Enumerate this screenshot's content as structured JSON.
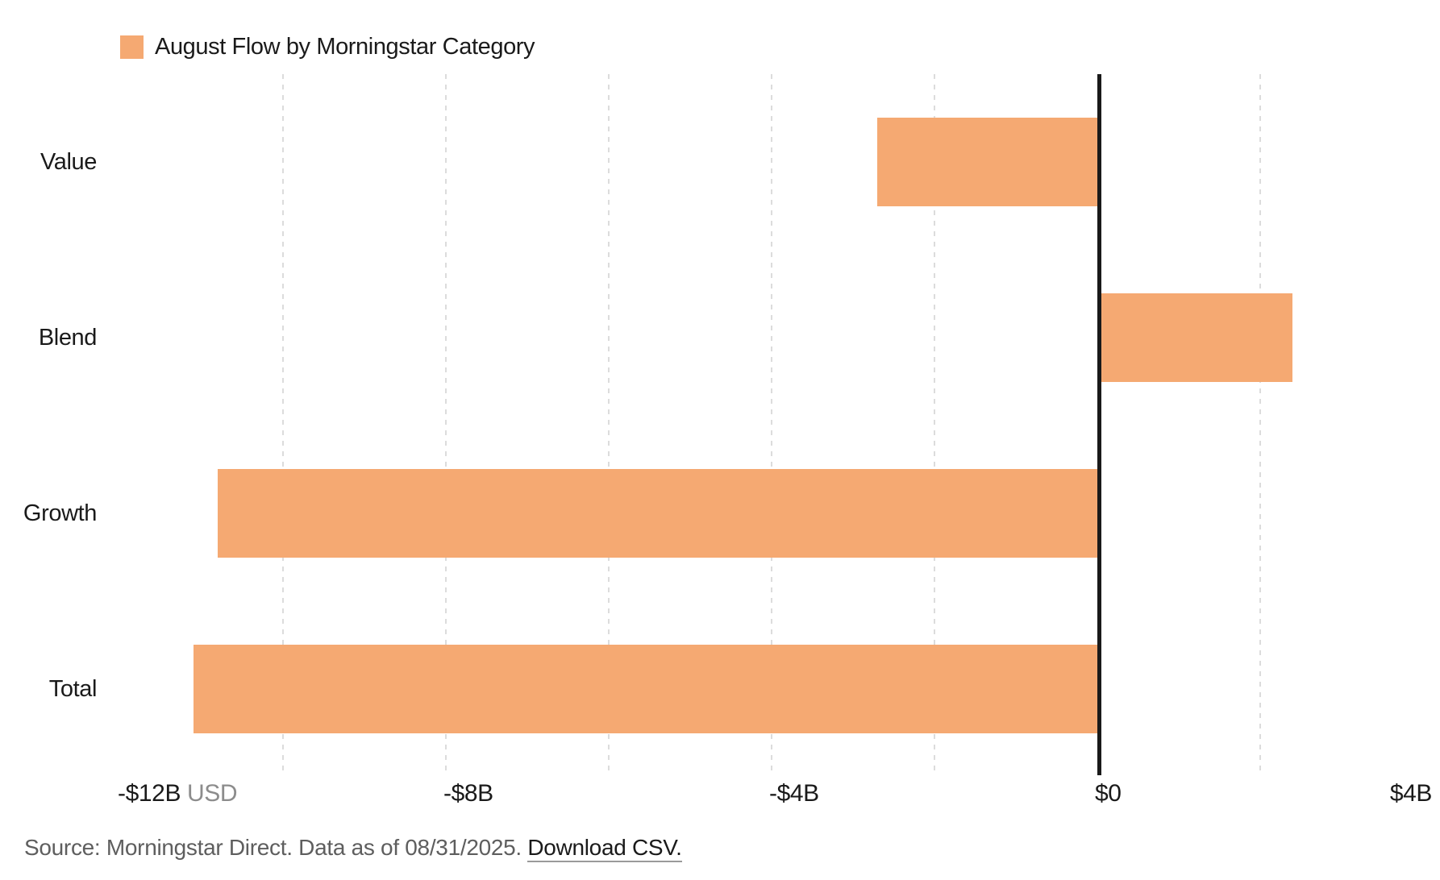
{
  "legend": {
    "label": "August Flow by Morningstar Category"
  },
  "chart_data": {
    "type": "bar",
    "orientation": "horizontal",
    "title": "August Flow by Morningstar Category",
    "categories": [
      "Value",
      "Blend",
      "Growth",
      "Total"
    ],
    "values": [
      -2.7,
      2.4,
      -10.8,
      -11.1
    ],
    "value_unit": "billions USD",
    "xlim": [
      -12,
      4
    ],
    "x_ticks": [
      {
        "value": -12,
        "label": "-$12B",
        "unit": "USD"
      },
      {
        "value": -8,
        "label": "-$8B"
      },
      {
        "value": -4,
        "label": "-$4B"
      },
      {
        "value": 0,
        "label": "$0"
      },
      {
        "value": 4,
        "label": "$4B"
      }
    ],
    "minor_gridline_values": [
      -10,
      -8,
      -6,
      -4,
      -2,
      2
    ],
    "grid": "vertical-dashed",
    "legend_position": "top-left",
    "bar_color": "#f5a972"
  },
  "colors": {
    "bar": "#f5a972",
    "zero_axis": "#1a1a1a",
    "gridline": "#dcdcdc",
    "text": "#1a1a1a",
    "unit_text": "#8c8c8c",
    "source_text": "#5e5e5e"
  },
  "source": {
    "text": "Source: Morningstar Direct. Data as of 08/31/2025. ",
    "link_label": "Download CSV."
  }
}
